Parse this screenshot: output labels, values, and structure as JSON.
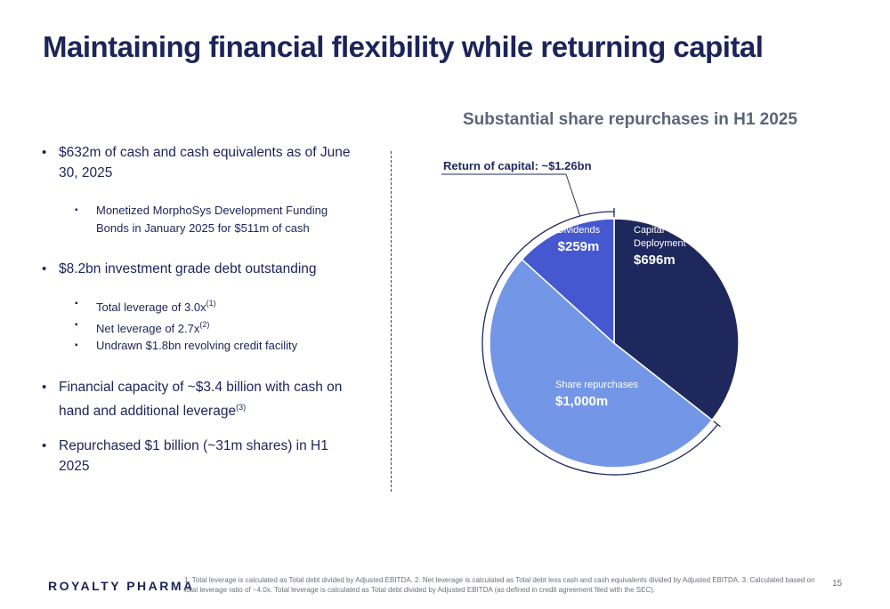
{
  "title": "Maintaining financial flexibility while returning capital",
  "bullets": {
    "item1": "$632m of cash and cash equivalents as of June 30, 2025",
    "item1_sub1": "Monetized MorphoSys Development Funding Bonds in January 2025 for $511m of cash",
    "item2": "$8.2bn investment grade debt outstanding",
    "item2_sub1": "Total leverage of 3.0x",
    "item2_sub1_sup": "(1)",
    "item2_sub2": "Net leverage of 2.7x",
    "item2_sub2_sup": "(2)",
    "item2_sub3": "Undrawn $1.8bn revolving credit facility",
    "item3": "Financial capacity of ~$3.4 billion with cash on hand and additional leverage",
    "item3_sup": "(3)",
    "item4": "Repurchased $1 billion (~31m shares) in H1 2025"
  },
  "chart_data": {
    "type": "pie",
    "title": "Substantial share repurchases in H1 2025",
    "annotation": "Return of capital: ~$1.26bn",
    "unit": "$m",
    "slices": [
      {
        "label_lines": [
          "Capital",
          "Deployment"
        ],
        "value": 696,
        "value_label": "$696m",
        "color": "#1f285c"
      },
      {
        "label_lines": [
          "Share repurchases"
        ],
        "value": 1000,
        "value_label": "$1,000m",
        "color": "#7397e6"
      },
      {
        "label_lines": [
          "Dividends"
        ],
        "value": 259,
        "value_label": "$259m",
        "color": "#4558cf"
      }
    ],
    "legend": "none"
  },
  "footer": {
    "logo": "ROYALTY PHARMA",
    "footnote": "1. Total leverage is calculated as Total debt divided by Adjusted EBITDA. 2. Net leverage is calculated as Total debt less cash and cash equivalents divided by Adjusted EBITDA. 3. Calculated based on total leverage ratio of ~4.0x. Total leverage is calculated as Total debt divided by Adjusted EBITDA (as defined in credit agreement filed with the SEC).",
    "page_number": "15"
  }
}
